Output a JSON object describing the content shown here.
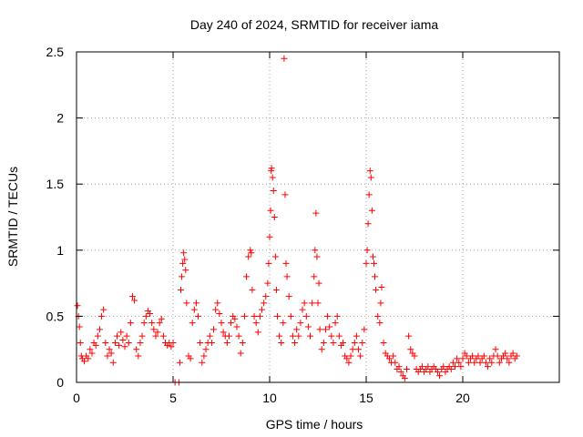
{
  "chart_data": {
    "type": "scatter",
    "title": "Day 240 of 2024, SRMTID for receiver iama",
    "xlabel": "GPS time / hours",
    "ylabel": "SRMTID / TECUs",
    "xlim": [
      0,
      25
    ],
    "ylim": [
      0,
      2.5
    ],
    "x_ticks": [
      0,
      5,
      10,
      15,
      20
    ],
    "x_tick_labels": [
      "0",
      "5",
      "10",
      "15",
      "20"
    ],
    "y_ticks": [
      0,
      0.5,
      1,
      1.5,
      2,
      2.5
    ],
    "y_tick_labels": [
      "0",
      "0.5",
      "1",
      "1.5",
      "2",
      "2.5"
    ],
    "grid": true,
    "marker": "+",
    "color": "#ff0000",
    "series": [
      {
        "name": "SRMTID",
        "points": [
          [
            0.05,
            0.58
          ],
          [
            0.1,
            0.5
          ],
          [
            0.15,
            0.42
          ],
          [
            0.2,
            0.3
          ],
          [
            0.25,
            0.2
          ],
          [
            0.3,
            0.18
          ],
          [
            0.4,
            0.16
          ],
          [
            0.5,
            0.2
          ],
          [
            0.6,
            0.18
          ],
          [
            0.7,
            0.25
          ],
          [
            0.8,
            0.22
          ],
          [
            0.9,
            0.3
          ],
          [
            1.0,
            0.28
          ],
          [
            1.1,
            0.35
          ],
          [
            1.2,
            0.4
          ],
          [
            1.3,
            0.5
          ],
          [
            1.4,
            0.55
          ],
          [
            1.5,
            0.3
          ],
          [
            1.6,
            0.2
          ],
          [
            1.7,
            0.25
          ],
          [
            1.8,
            0.22
          ],
          [
            1.9,
            0.15
          ],
          [
            2.0,
            0.3
          ],
          [
            2.1,
            0.35
          ],
          [
            2.2,
            0.28
          ],
          [
            2.3,
            0.38
          ],
          [
            2.4,
            0.32
          ],
          [
            2.5,
            0.27
          ],
          [
            2.6,
            0.35
          ],
          [
            2.7,
            0.3
          ],
          [
            2.8,
            0.45
          ],
          [
            2.9,
            0.65
          ],
          [
            3.0,
            0.62
          ],
          [
            3.1,
            0.25
          ],
          [
            3.2,
            0.2
          ],
          [
            3.3,
            0.3
          ],
          [
            3.4,
            0.35
          ],
          [
            3.5,
            0.45
          ],
          [
            3.6,
            0.5
          ],
          [
            3.7,
            0.54
          ],
          [
            3.8,
            0.52
          ],
          [
            3.9,
            0.45
          ],
          [
            4.0,
            0.4
          ],
          [
            4.1,
            0.35
          ],
          [
            4.2,
            0.38
          ],
          [
            4.3,
            0.45
          ],
          [
            4.4,
            0.48
          ],
          [
            4.5,
            0.35
          ],
          [
            4.6,
            0.3
          ],
          [
            4.7,
            0.28
          ],
          [
            4.8,
            0.3
          ],
          [
            4.9,
            0.27
          ],
          [
            5.0,
            0.3
          ],
          [
            5.1,
            0.0
          ],
          [
            5.3,
            0.0
          ],
          [
            5.35,
            0.15
          ],
          [
            5.4,
            0.7
          ],
          [
            5.45,
            0.8
          ],
          [
            5.5,
            0.9
          ],
          [
            5.55,
            0.98
          ],
          [
            5.6,
            0.93
          ],
          [
            5.65,
            0.85
          ],
          [
            5.7,
            0.6
          ],
          [
            5.8,
            0.2
          ],
          [
            5.9,
            0.18
          ],
          [
            6.0,
            0.45
          ],
          [
            6.1,
            0.55
          ],
          [
            6.2,
            0.6
          ],
          [
            6.3,
            0.5
          ],
          [
            6.4,
            0.3
          ],
          [
            6.5,
            0.15
          ],
          [
            6.6,
            0.2
          ],
          [
            6.7,
            0.25
          ],
          [
            6.8,
            0.3
          ],
          [
            6.9,
            0.35
          ],
          [
            7.0,
            0.3
          ],
          [
            7.1,
            0.4
          ],
          [
            7.2,
            0.55
          ],
          [
            7.3,
            0.6
          ],
          [
            7.4,
            0.52
          ],
          [
            7.5,
            0.45
          ],
          [
            7.6,
            0.38
          ],
          [
            7.7,
            0.35
          ],
          [
            7.8,
            0.3
          ],
          [
            7.9,
            0.35
          ],
          [
            8.0,
            0.45
          ],
          [
            8.1,
            0.5
          ],
          [
            8.2,
            0.48
          ],
          [
            8.3,
            0.42
          ],
          [
            8.4,
            0.35
          ],
          [
            8.5,
            0.22
          ],
          [
            8.6,
            0.3
          ],
          [
            8.7,
            0.5
          ],
          [
            8.8,
            0.8
          ],
          [
            8.9,
            0.95
          ],
          [
            9.0,
            1.0
          ],
          [
            9.05,
            0.98
          ],
          [
            9.1,
            0.7
          ],
          [
            9.2,
            0.5
          ],
          [
            9.3,
            0.45
          ],
          [
            9.4,
            0.38
          ],
          [
            9.5,
            0.5
          ],
          [
            9.6,
            0.55
          ],
          [
            9.7,
            0.6
          ],
          [
            9.8,
            0.65
          ],
          [
            9.9,
            0.75
          ],
          [
            9.95,
            0.9
          ],
          [
            10.0,
            1.1
          ],
          [
            10.05,
            1.3
          ],
          [
            10.08,
            1.6
          ],
          [
            10.1,
            1.62
          ],
          [
            10.15,
            1.55
          ],
          [
            10.2,
            1.45
          ],
          [
            10.25,
            1.25
          ],
          [
            10.3,
            0.95
          ],
          [
            10.35,
            0.7
          ],
          [
            10.4,
            0.5
          ],
          [
            10.5,
            0.35
          ],
          [
            10.6,
            0.3
          ],
          [
            10.7,
            0.45
          ],
          [
            10.75,
            2.45
          ],
          [
            10.8,
            1.42
          ],
          [
            10.85,
            0.9
          ],
          [
            10.9,
            0.8
          ],
          [
            11.0,
            0.65
          ],
          [
            11.1,
            0.5
          ],
          [
            11.2,
            0.35
          ],
          [
            11.3,
            0.3
          ],
          [
            11.4,
            0.4
          ],
          [
            11.5,
            0.35
          ],
          [
            11.6,
            0.45
          ],
          [
            11.7,
            0.55
          ],
          [
            11.8,
            0.6
          ],
          [
            11.9,
            0.5
          ],
          [
            12.0,
            0.42
          ],
          [
            12.1,
            0.35
          ],
          [
            12.2,
            0.6
          ],
          [
            12.3,
            0.8
          ],
          [
            12.35,
            1.0
          ],
          [
            12.4,
            1.28
          ],
          [
            12.45,
            0.95
          ],
          [
            12.5,
            0.6
          ],
          [
            12.55,
            0.75
          ],
          [
            12.6,
            0.4
          ],
          [
            12.7,
            0.25
          ],
          [
            12.8,
            0.3
          ],
          [
            12.9,
            0.4
          ],
          [
            13.0,
            0.5
          ],
          [
            13.1,
            0.42
          ],
          [
            13.2,
            0.35
          ],
          [
            13.3,
            0.3
          ],
          [
            13.4,
            0.45
          ],
          [
            13.5,
            0.5
          ],
          [
            13.6,
            0.35
          ],
          [
            13.7,
            0.28
          ],
          [
            13.8,
            0.3
          ],
          [
            13.9,
            0.2
          ],
          [
            14.0,
            0.18
          ],
          [
            14.1,
            0.15
          ],
          [
            14.2,
            0.2
          ],
          [
            14.3,
            0.25
          ],
          [
            14.4,
            0.3
          ],
          [
            14.5,
            0.35
          ],
          [
            14.6,
            0.25
          ],
          [
            14.7,
            0.2
          ],
          [
            14.8,
            0.3
          ],
          [
            14.9,
            0.4
          ],
          [
            15.0,
            0.9
          ],
          [
            15.05,
            1.0
          ],
          [
            15.1,
            1.2
          ],
          [
            15.15,
            1.42
          ],
          [
            15.2,
            1.6
          ],
          [
            15.25,
            1.55
          ],
          [
            15.3,
            1.3
          ],
          [
            15.35,
            0.95
          ],
          [
            15.4,
            0.9
          ],
          [
            15.45,
            0.8
          ],
          [
            15.5,
            0.7
          ],
          [
            15.6,
            0.5
          ],
          [
            15.7,
            0.45
          ],
          [
            15.75,
            0.6
          ],
          [
            15.8,
            0.72
          ],
          [
            15.9,
            0.3
          ],
          [
            16.0,
            0.22
          ],
          [
            16.1,
            0.2
          ],
          [
            16.2,
            0.18
          ],
          [
            16.3,
            0.15
          ],
          [
            16.4,
            0.2
          ],
          [
            16.5,
            0.15
          ],
          [
            16.6,
            0.1
          ],
          [
            16.7,
            0.12
          ],
          [
            16.8,
            0.08
          ],
          [
            16.9,
            0.05
          ],
          [
            17.0,
            0.03
          ],
          [
            17.1,
            0.1
          ],
          [
            17.2,
            0.35
          ],
          [
            17.3,
            0.25
          ],
          [
            17.4,
            0.22
          ],
          [
            17.5,
            0.2
          ],
          [
            17.6,
            0.1
          ],
          [
            17.7,
            0.08
          ],
          [
            17.8,
            0.1
          ],
          [
            17.9,
            0.12
          ],
          [
            18.0,
            0.08
          ],
          [
            18.1,
            0.1
          ],
          [
            18.2,
            0.12
          ],
          [
            18.3,
            0.08
          ],
          [
            18.4,
            0.1
          ],
          [
            18.5,
            0.12
          ],
          [
            18.6,
            0.1
          ],
          [
            18.7,
            0.08
          ],
          [
            18.8,
            0.05
          ],
          [
            18.9,
            0.1
          ],
          [
            19.0,
            0.12
          ],
          [
            19.1,
            0.08
          ],
          [
            19.2,
            0.1
          ],
          [
            19.3,
            0.12
          ],
          [
            19.4,
            0.1
          ],
          [
            19.5,
            0.15
          ],
          [
            19.6,
            0.12
          ],
          [
            19.7,
            0.18
          ],
          [
            19.8,
            0.15
          ],
          [
            19.9,
            0.12
          ],
          [
            20.0,
            0.18
          ],
          [
            20.1,
            0.22
          ],
          [
            20.2,
            0.2
          ],
          [
            20.3,
            0.15
          ],
          [
            20.4,
            0.18
          ],
          [
            20.5,
            0.2
          ],
          [
            20.6,
            0.15
          ],
          [
            20.7,
            0.18
          ],
          [
            20.8,
            0.2
          ],
          [
            20.9,
            0.15
          ],
          [
            21.0,
            0.18
          ],
          [
            21.1,
            0.2
          ],
          [
            21.2,
            0.15
          ],
          [
            21.3,
            0.12
          ],
          [
            21.4,
            0.18
          ],
          [
            21.5,
            0.15
          ],
          [
            21.6,
            0.2
          ],
          [
            21.7,
            0.25
          ],
          [
            21.8,
            0.2
          ],
          [
            21.9,
            0.15
          ],
          [
            22.0,
            0.18
          ],
          [
            22.1,
            0.2
          ],
          [
            22.2,
            0.22
          ],
          [
            22.3,
            0.18
          ],
          [
            22.4,
            0.15
          ],
          [
            22.5,
            0.2
          ],
          [
            22.6,
            0.22
          ],
          [
            22.7,
            0.18
          ],
          [
            22.8,
            0.2
          ]
        ]
      }
    ]
  }
}
